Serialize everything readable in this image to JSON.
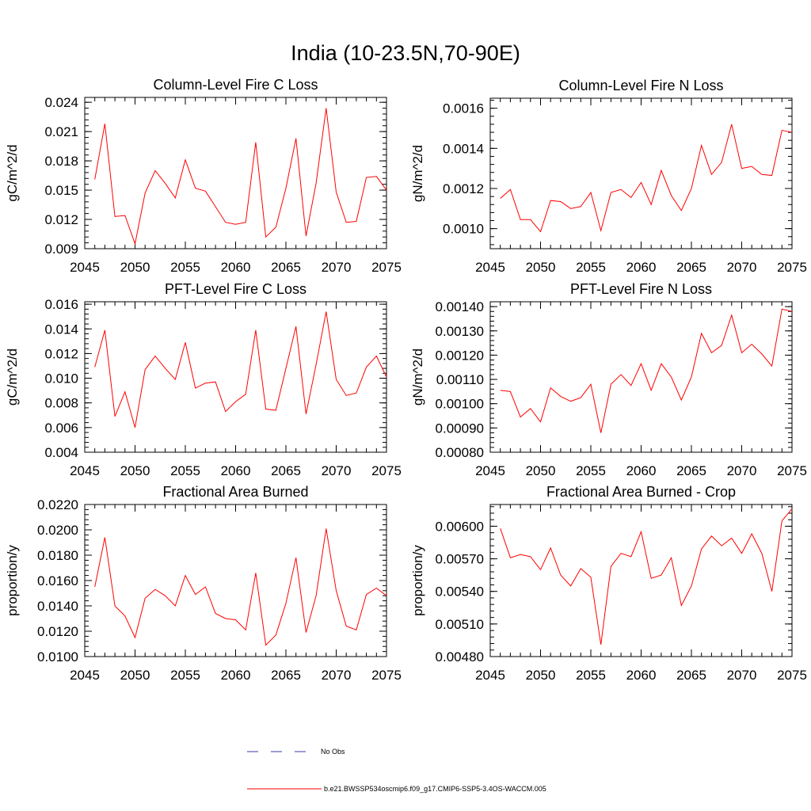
{
  "title": "India (10-23.5N,70-90E)",
  "colors": {
    "model": "#ff0000",
    "obs": "#3a3aa8",
    "frame": "#000000"
  },
  "legend": [
    {
      "label": "No Obs",
      "style": "dashed",
      "color": "#3a3aa8"
    },
    {
      "label": "b.e21.BWSSP534oscmip6.f09_g17.CMIP6-SSP5-3.4OS-WACCM.005",
      "style": "solid",
      "color": "#ff0000"
    }
  ],
  "chart_data": [
    {
      "type": "line",
      "title": "Column-Level Fire C Loss",
      "ylabel": "gC/m^2/d",
      "xlim": [
        2045,
        2075
      ],
      "ylim": [
        0.009,
        0.0245
      ],
      "xticks": [
        "2045",
        "2050",
        "2055",
        "2060",
        "2065",
        "2070",
        "2075"
      ],
      "yticks": [
        "0.009",
        "0.012",
        "0.015",
        "0.018",
        "0.021",
        "0.024"
      ],
      "x": [
        2046,
        2047,
        2048,
        2049,
        2050,
        2051,
        2052,
        2053,
        2054,
        2055,
        2056,
        2057,
        2058,
        2059,
        2060,
        2061,
        2062,
        2063,
        2064,
        2065,
        2066,
        2067,
        2068,
        2069,
        2070,
        2071,
        2072,
        2073,
        2074,
        2075
      ],
      "series": [
        {
          "values": [
            0.0161,
            0.0218,
            0.0123,
            0.0124,
            0.0095,
            0.0147,
            0.017,
            0.0157,
            0.0142,
            0.0181,
            0.0152,
            0.0149,
            0.0133,
            0.0117,
            0.0115,
            0.0117,
            0.0199,
            0.0102,
            0.0112,
            0.0152,
            0.0203,
            0.0103,
            0.0157,
            0.0234,
            0.0148,
            0.0117,
            0.0118,
            0.0163,
            0.0164,
            0.015
          ]
        }
      ]
    },
    {
      "type": "line",
      "title": "Column-Level Fire N Loss",
      "ylabel": "gN/m^2/d",
      "xlim": [
        2045,
        2075
      ],
      "ylim": [
        0.0009,
        0.00165
      ],
      "xticks": [
        "2045",
        "2050",
        "2055",
        "2060",
        "2065",
        "2070",
        "2075"
      ],
      "yticks": [
        "0.0010",
        "0.0012",
        "0.0014",
        "0.0016"
      ],
      "x": [
        2046,
        2047,
        2048,
        2049,
        2050,
        2051,
        2052,
        2053,
        2054,
        2055,
        2056,
        2057,
        2058,
        2059,
        2060,
        2061,
        2062,
        2063,
        2064,
        2065,
        2066,
        2067,
        2068,
        2069,
        2070,
        2071,
        2072,
        2073,
        2074,
        2075
      ],
      "series": [
        {
          "values": [
            0.00115,
            0.001195,
            0.001045,
            0.001045,
            0.000985,
            0.00114,
            0.001135,
            0.0011,
            0.00111,
            0.00118,
            0.00099,
            0.00118,
            0.001195,
            0.001155,
            0.00123,
            0.00112,
            0.00129,
            0.001165,
            0.00109,
            0.0012,
            0.001415,
            0.00127,
            0.00133,
            0.00152,
            0.0013,
            0.00131,
            0.00127,
            0.001265,
            0.00149,
            0.00148
          ]
        }
      ]
    },
    {
      "type": "line",
      "title": "PFT-Level Fire C Loss",
      "ylabel": "gC/m^2/d",
      "xlim": [
        2045,
        2075
      ],
      "ylim": [
        0.004,
        0.0162
      ],
      "xticks": [
        "2045",
        "2050",
        "2055",
        "2060",
        "2065",
        "2070",
        "2075"
      ],
      "yticks": [
        "0.004",
        "0.006",
        "0.008",
        "0.010",
        "0.012",
        "0.014",
        "0.016"
      ],
      "x": [
        2046,
        2047,
        2048,
        2049,
        2050,
        2051,
        2052,
        2053,
        2054,
        2055,
        2056,
        2057,
        2058,
        2059,
        2060,
        2061,
        2062,
        2063,
        2064,
        2065,
        2066,
        2067,
        2068,
        2069,
        2070,
        2071,
        2072,
        2073,
        2074,
        2075
      ],
      "series": [
        {
          "values": [
            0.0109,
            0.0139,
            0.0069,
            0.0089,
            0.006,
            0.0107,
            0.0118,
            0.0108,
            0.0099,
            0.0129,
            0.0092,
            0.0096,
            0.0097,
            0.0073,
            0.0081,
            0.0087,
            0.0139,
            0.0075,
            0.0074,
            0.0108,
            0.0142,
            0.0071,
            0.0111,
            0.0154,
            0.0099,
            0.0086,
            0.0088,
            0.0109,
            0.0118,
            0.0101
          ]
        }
      ]
    },
    {
      "type": "line",
      "title": "PFT-Level Fire N Loss",
      "ylabel": "gN/m^2/d",
      "xlim": [
        2045,
        2075
      ],
      "ylim": [
        0.0008,
        0.00142
      ],
      "xticks": [
        "2045",
        "2050",
        "2055",
        "2060",
        "2065",
        "2070",
        "2075"
      ],
      "yticks": [
        "0.00080",
        "0.00090",
        "0.00100",
        "0.00110",
        "0.00120",
        "0.00130",
        "0.00140"
      ],
      "x": [
        2046,
        2047,
        2048,
        2049,
        2050,
        2051,
        2052,
        2053,
        2054,
        2055,
        2056,
        2057,
        2058,
        2059,
        2060,
        2061,
        2062,
        2063,
        2064,
        2065,
        2066,
        2067,
        2068,
        2069,
        2070,
        2071,
        2072,
        2073,
        2074,
        2075
      ],
      "series": [
        {
          "values": [
            0.001055,
            0.00105,
            0.000945,
            0.00098,
            0.000925,
            0.001065,
            0.00103,
            0.00101,
            0.001025,
            0.00108,
            0.00088,
            0.00108,
            0.00112,
            0.001075,
            0.001165,
            0.001055,
            0.001165,
            0.00111,
            0.001015,
            0.00111,
            0.00129,
            0.00121,
            0.00124,
            0.001365,
            0.00121,
            0.001245,
            0.001205,
            0.001155,
            0.00139,
            0.00138
          ]
        }
      ]
    },
    {
      "type": "line",
      "title": "Fractional Area Burned",
      "ylabel": "proportion/y",
      "xlim": [
        2045,
        2075
      ],
      "ylim": [
        0.01,
        0.022
      ],
      "xticks": [
        "2045",
        "2050",
        "2055",
        "2060",
        "2065",
        "2070",
        "2075"
      ],
      "yticks": [
        "0.0100",
        "0.0120",
        "0.0140",
        "0.0160",
        "0.0180",
        "0.0200",
        "0.0220"
      ],
      "x": [
        2046,
        2047,
        2048,
        2049,
        2050,
        2051,
        2052,
        2053,
        2054,
        2055,
        2056,
        2057,
        2058,
        2059,
        2060,
        2061,
        2062,
        2063,
        2064,
        2065,
        2066,
        2067,
        2068,
        2069,
        2070,
        2071,
        2072,
        2073,
        2074,
        2075
      ],
      "series": [
        {
          "values": [
            0.0155,
            0.0194,
            0.014,
            0.0132,
            0.0115,
            0.0146,
            0.0153,
            0.0148,
            0.014,
            0.0164,
            0.0149,
            0.0155,
            0.0134,
            0.013,
            0.0129,
            0.0121,
            0.0166,
            0.0109,
            0.0117,
            0.0142,
            0.0178,
            0.0119,
            0.0148,
            0.0201,
            0.0152,
            0.0124,
            0.0121,
            0.0149,
            0.0154,
            0.0148
          ]
        }
      ]
    },
    {
      "type": "line",
      "title": "Fractional Area Burned - Crop",
      "ylabel": "proportion/y",
      "xlim": [
        2045,
        2075
      ],
      "ylim": [
        0.0048,
        0.0062
      ],
      "xticks": [
        "2045",
        "2050",
        "2055",
        "2060",
        "2065",
        "2070",
        "2075"
      ],
      "yticks": [
        "0.00480",
        "0.00510",
        "0.00540",
        "0.00570",
        "0.00600"
      ],
      "x": [
        2046,
        2047,
        2048,
        2049,
        2050,
        2051,
        2052,
        2053,
        2054,
        2055,
        2056,
        2057,
        2058,
        2059,
        2060,
        2061,
        2062,
        2063,
        2064,
        2065,
        2066,
        2067,
        2068,
        2069,
        2070,
        2071,
        2072,
        2073,
        2074,
        2075
      ],
      "series": [
        {
          "values": [
            0.00598,
            0.00571,
            0.00574,
            0.00572,
            0.0056,
            0.0058,
            0.00555,
            0.00545,
            0.00561,
            0.00553,
            0.00491,
            0.00563,
            0.00575,
            0.00572,
            0.00595,
            0.00552,
            0.00555,
            0.00571,
            0.00527,
            0.00545,
            0.00579,
            0.00591,
            0.00582,
            0.00589,
            0.00575,
            0.00593,
            0.00575,
            0.0054,
            0.00605,
            0.00616
          ]
        }
      ]
    }
  ]
}
